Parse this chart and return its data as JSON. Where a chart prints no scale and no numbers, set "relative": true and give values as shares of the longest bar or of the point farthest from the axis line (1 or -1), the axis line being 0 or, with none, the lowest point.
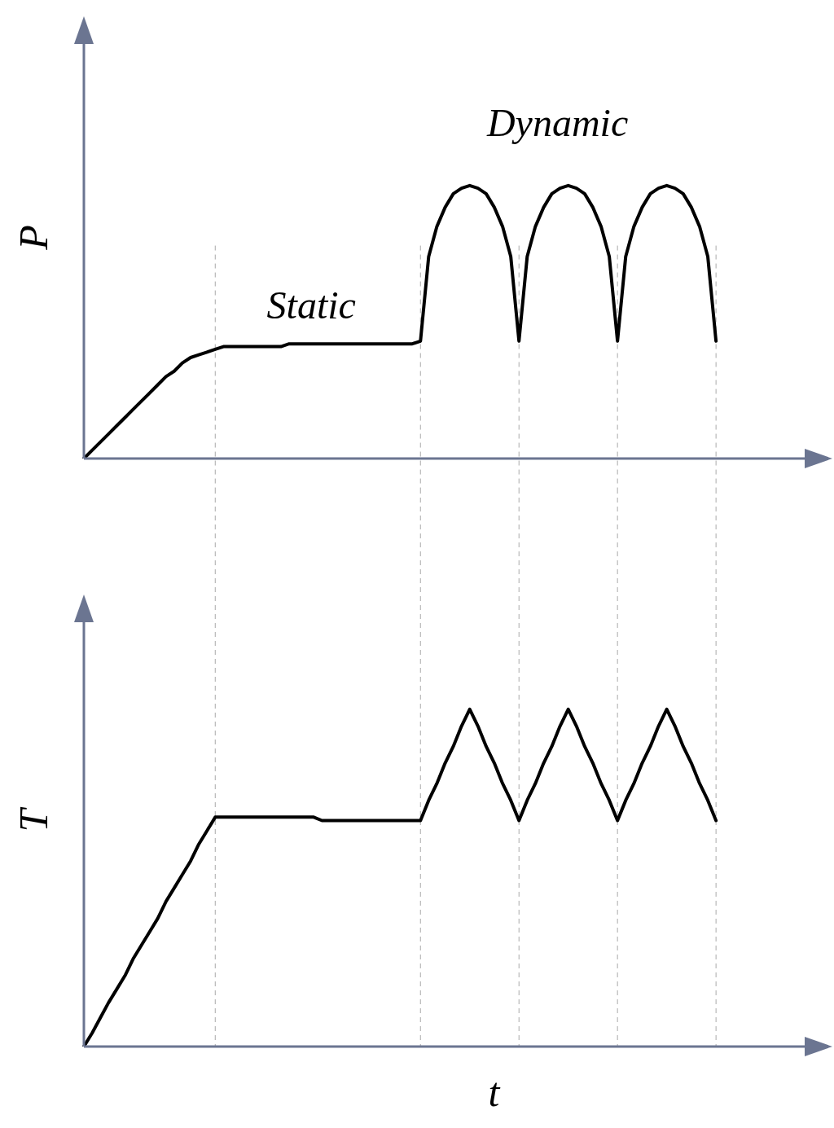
{
  "chart_data": [
    {
      "type": "line",
      "ylabel": "P",
      "relative": true,
      "marker": "none",
      "line_style": "solid",
      "annotations": [
        "Static",
        "Dynamic"
      ],
      "categories": [
        null,
        null,
        null,
        null,
        null,
        null,
        null,
        null,
        null,
        null,
        null,
        null,
        null,
        null,
        null,
        null,
        null,
        null,
        null,
        null,
        null,
        null,
        null,
        null,
        null,
        null,
        null,
        null,
        null,
        null,
        null,
        null,
        null,
        null,
        null,
        null,
        null,
        null,
        null,
        null,
        null,
        null,
        null,
        null,
        null,
        null,
        null,
        null,
        null,
        null,
        null,
        null,
        null,
        null,
        null,
        null,
        null,
        null,
        null,
        null,
        null,
        null,
        null,
        null,
        null,
        null,
        null,
        null,
        null,
        null,
        null,
        null,
        null,
        null,
        null,
        null,
        null,
        null,
        null,
        null,
        null,
        null,
        null,
        null,
        null,
        null,
        null,
        null,
        null
      ],
      "series": [
        {
          "color": "#000000",
          "values": [
            0,
            0.03,
            0.06,
            0.09,
            0.12,
            0.15,
            0.18,
            0.21,
            0.24,
            0.27,
            0.3,
            0.32,
            0.35,
            0.37,
            0.38,
            0.39,
            0.4,
            0.41,
            0.41,
            0.41,
            0.41,
            0.41,
            0.41,
            0.41,
            0.41,
            0.42,
            0.42,
            0.42,
            0.42,
            0.42,
            0.42,
            0.42,
            0.42,
            0.42,
            0.42,
            0.42,
            0.42,
            0.42,
            0.42,
            0.42,
            0.42,
            0.43,
            0.74,
            0.85,
            0.92,
            0.97,
            0.99,
            1,
            0.99,
            0.97,
            0.92,
            0.85,
            0.74,
            0.43,
            0.74,
            0.85,
            0.92,
            0.97,
            0.99,
            1,
            0.99,
            0.97,
            0.92,
            0.85,
            0.74,
            0.43,
            0.74,
            0.85,
            0.92,
            0.97,
            0.99,
            1,
            0.99,
            0.97,
            0.92,
            0.85,
            0.74,
            0.43,
            null,
            null,
            null,
            null,
            null,
            null,
            null,
            null,
            null,
            null,
            null
          ]
        }
      ],
      "grid": "x"
    },
    {
      "type": "line",
      "ylabel": "T",
      "xlabel": "t",
      "relative": true,
      "marker": "none",
      "line_style": "solid",
      "categories": [
        null,
        null,
        null,
        null,
        null,
        null,
        null,
        null,
        null,
        null,
        null,
        null,
        null,
        null,
        null,
        null,
        null,
        null,
        null,
        null,
        null,
        null,
        null,
        null,
        null,
        null,
        null,
        null,
        null,
        null,
        null,
        null,
        null,
        null,
        null,
        null,
        null,
        null,
        null,
        null,
        null,
        null,
        null,
        null,
        null,
        null,
        null,
        null,
        null,
        null,
        null,
        null,
        null,
        null,
        null,
        null,
        null,
        null,
        null,
        null,
        null,
        null,
        null,
        null,
        null,
        null,
        null,
        null,
        null,
        null,
        null,
        null,
        null,
        null,
        null,
        null,
        null,
        null,
        null,
        null,
        null,
        null,
        null,
        null,
        null,
        null,
        null,
        null,
        null
      ],
      "series": [
        {
          "color": "#000000",
          "values": [
            0,
            0.04,
            0.085,
            0.13,
            0.17,
            0.21,
            0.26,
            0.3,
            0.34,
            0.38,
            0.43,
            0.47,
            0.51,
            0.55,
            0.6,
            0.64,
            0.68,
            0.68,
            0.68,
            0.68,
            0.68,
            0.68,
            0.68,
            0.68,
            0.68,
            0.68,
            0.68,
            0.68,
            0.68,
            0.67,
            0.67,
            0.67,
            0.67,
            0.67,
            0.67,
            0.67,
            0.67,
            0.67,
            0.67,
            0.67,
            0.67,
            0.67,
            0.73,
            0.78,
            0.84,
            0.89,
            0.95,
            1,
            0.95,
            0.89,
            0.84,
            0.78,
            0.73,
            0.67,
            0.73,
            0.78,
            0.84,
            0.89,
            0.95,
            1,
            0.95,
            0.89,
            0.84,
            0.78,
            0.73,
            0.67,
            0.73,
            0.78,
            0.84,
            0.89,
            0.95,
            1,
            0.95,
            0.89,
            0.84,
            0.78,
            0.73,
            0.67,
            null,
            null,
            null,
            null,
            null,
            null,
            null,
            null,
            null,
            null,
            null
          ]
        }
      ],
      "grid": "x"
    }
  ]
}
